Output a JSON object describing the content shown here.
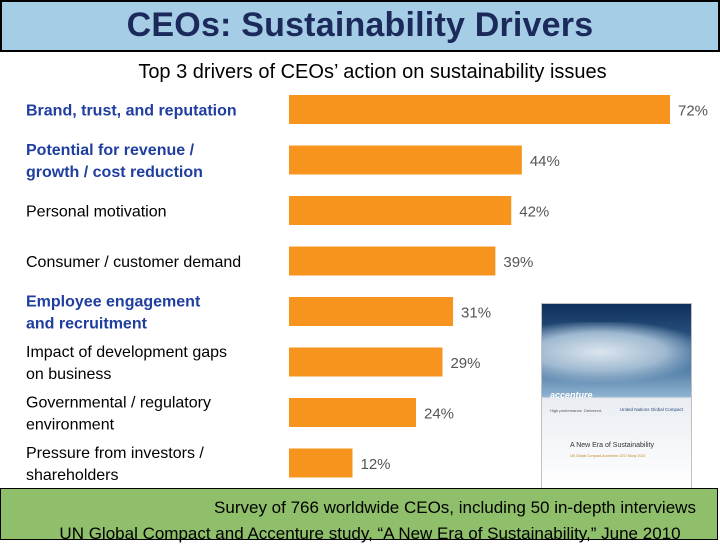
{
  "slide": {
    "title": "CEOs: Sustainability Drivers",
    "footer_line1": "Survey of 766 worldwide CEOs, including 50 in-depth interviews",
    "footer_line2": "UN Global Compact and Accenture study, “A New Era of Sustainability,” June 2010"
  },
  "chart_data": {
    "type": "bar",
    "orientation": "horizontal",
    "title": "Top 3 drivers of CEOs’ action on sustainability issues",
    "categories": [
      "Brand, trust, and reputation",
      "Potential for revenue / growth / cost reduction",
      "Personal motivation",
      "Consumer / customer demand",
      "Employee engagement and recruitment",
      "Impact of development gaps on business",
      "Governmental / regulatory environment",
      "Pressure from investors / shareholders"
    ],
    "category_lines": [
      [
        "Brand, trust, and reputation"
      ],
      [
        "Potential for revenue /",
        "growth / cost reduction"
      ],
      [
        "Personal motivation"
      ],
      [
        "Consumer / customer demand"
      ],
      [
        "Employee engagement",
        "and recruitment"
      ],
      [
        "Impact of development gaps",
        "on business"
      ],
      [
        "Governmental / regulatory",
        "environment"
      ],
      [
        "Pressure from investors /",
        "shareholders"
      ]
    ],
    "highlighted": [
      true,
      true,
      false,
      false,
      true,
      false,
      false,
      false
    ],
    "values": [
      72,
      44,
      42,
      39,
      31,
      29,
      24,
      12
    ],
    "data_labels": [
      "72%",
      "44%",
      "42%",
      "39%",
      "31%",
      "29%",
      "24%",
      "12%"
    ],
    "xlim": [
      0,
      72
    ],
    "colors": {
      "bar": "#f7941d",
      "label_highlight": "#1f3ea0",
      "label_normal": "#000000",
      "title_bar": "#a6cde6",
      "title_text": "#1b2a5a",
      "footer": "#8fbf6a"
    }
  },
  "cover_image": {
    "brand": "accenture",
    "tagline": "High performance. Delivered.",
    "partner": "United Nations Global Compact",
    "title": "A New Era of Sustainability",
    "subtitle": "UN Global Compact-Accenture CEO Study 2010"
  }
}
